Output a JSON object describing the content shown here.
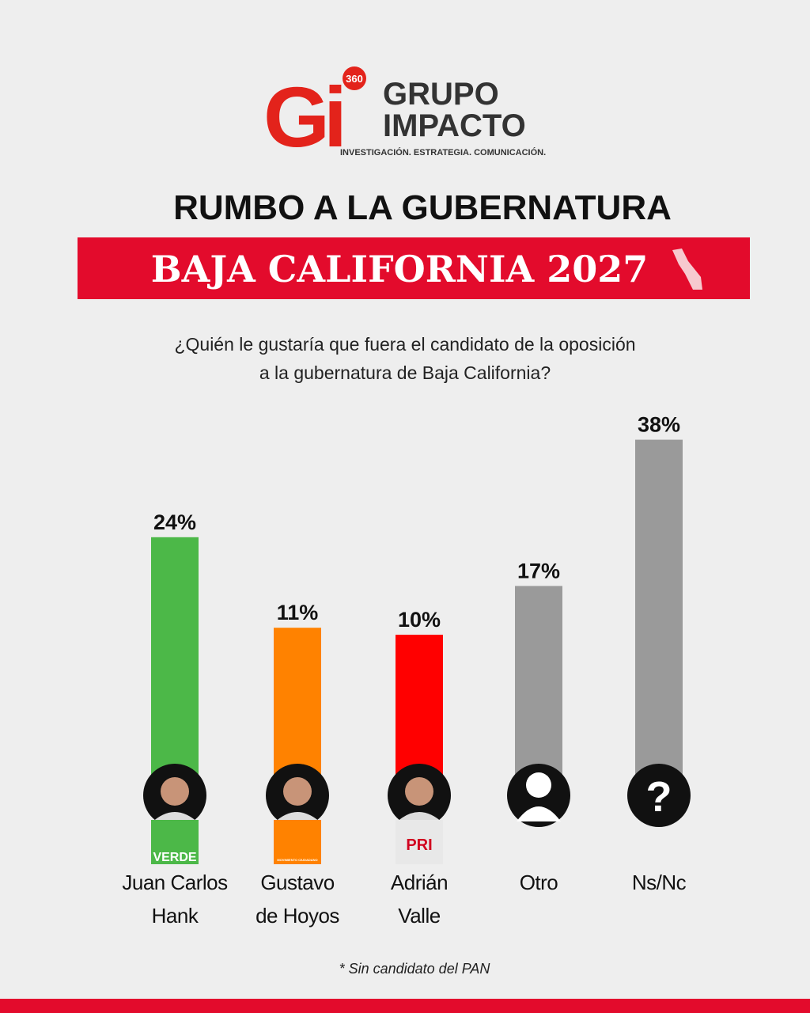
{
  "logo": {
    "mark": "Gi",
    "badge": "360",
    "line1": "GRUPO",
    "line2": "IMPACTO",
    "tagline": "INVESTIGACIÓN. ESTRATEGIA. COMUNICACIÓN."
  },
  "chart_data": {
    "type": "bar",
    "title": "RUMBO A LA GUBERNATURA",
    "subtitle": "BAJA CALIFORNIA 2027",
    "question": [
      "¿Quién le gustaría que fuera el candidato de la oposición",
      "a la gubernatura de Baja California?"
    ],
    "categories": [
      "Juan Carlos\nHank",
      "Gustavo\nde Hoyos",
      "Adrián\nValle",
      "Otro",
      "Ns/Nc"
    ],
    "values": [
      24,
      11,
      10,
      17,
      38
    ],
    "value_labels": [
      "24%",
      "11%",
      "10%",
      "17%",
      "38%"
    ],
    "colors": [
      "#4cb848",
      "#ff8200",
      "#ff0000",
      "#9a9a9a",
      "#9a9a9a"
    ],
    "party_badges": [
      "VERDE",
      "MOVIMIENTO CIUDADANO",
      "PRI",
      null,
      null
    ],
    "unknown_icon": "?",
    "footnote": "* Sin candidato del PAN"
  }
}
